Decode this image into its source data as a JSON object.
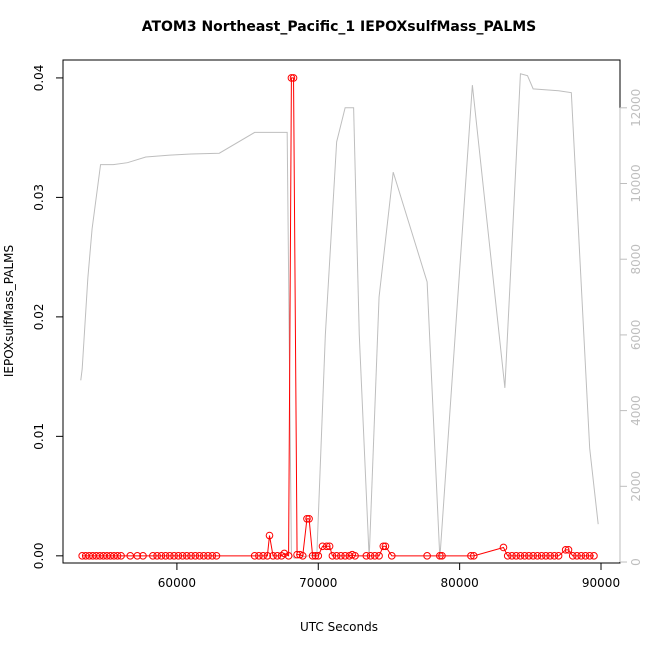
{
  "chart_data": {
    "type": "line",
    "title": "ATOM3 Northeast_Pacific_1 IEPOXsulfMass_PALMS",
    "x_label": "UTC Seconds",
    "y_label": "IEPOXsulfMass_PALMS",
    "xlim": [
      51943,
      91343
    ],
    "ylim": [
      -0.0006,
      0.0415
    ],
    "y2lim": [
      -26,
      13263
    ],
    "xticks": [
      60000,
      70000,
      80000,
      90000
    ],
    "yticks": [
      {
        "value": 0,
        "label": "0.00"
      },
      0.01,
      0.02,
      0.03,
      0.04
    ],
    "y2ticks": [
      0,
      2000,
      4000,
      6000,
      8000,
      10000,
      12000
    ],
    "series": [
      {
        "color": "#bebebe",
        "axis": "y2",
        "markers": false,
        "x": [
          53200,
          53300,
          53700,
          54000,
          54600,
          55500,
          56500,
          57800,
          59500,
          61000,
          63000,
          65500,
          67800,
          68100,
          68300,
          69900,
          70500,
          71300,
          71900,
          72500,
          72900,
          73600,
          74300,
          75300,
          77700,
          78600,
          80900,
          83200,
          84300,
          84800,
          85200,
          87000,
          87900,
          89200,
          89800
        ],
        "values": [
          4800,
          5100,
          7500,
          8800,
          10500,
          10500,
          10550,
          10700,
          10750,
          10780,
          10800,
          11350,
          11350,
          200,
          100,
          200,
          6000,
          11100,
          12000,
          12000,
          6000,
          100,
          7000,
          10300,
          7400,
          100,
          12600,
          4600,
          12900,
          12850,
          12500,
          12450,
          12400,
          3000,
          1000
        ]
      },
      {
        "color": "#ff0000",
        "axis": "y",
        "markers": true,
        "x": [
          53300,
          53550,
          53800,
          54050,
          54300,
          54550,
          54800,
          55050,
          55300,
          55550,
          55800,
          56050,
          56700,
          57200,
          57600,
          58300,
          58600,
          58900,
          59200,
          59500,
          59800,
          60100,
          60400,
          60700,
          61000,
          61300,
          61600,
          61900,
          62200,
          62500,
          62800,
          65500,
          65800,
          66100,
          66400,
          66550,
          66800,
          67100,
          67400,
          67600,
          67900,
          68100,
          68250,
          68500,
          68700,
          68900,
          69200,
          69350,
          69600,
          69800,
          70000,
          70300,
          70600,
          70800,
          71000,
          71300,
          71600,
          71900,
          72200,
          72400,
          72600,
          73400,
          73700,
          74000,
          74300,
          74600,
          74750,
          75200,
          77700,
          78600,
          78750,
          80800,
          81000,
          83100,
          83400,
          83700,
          84000,
          84300,
          84600,
          84900,
          85200,
          85500,
          85800,
          86100,
          86400,
          86700,
          87000,
          87500,
          87700,
          88000,
          88300,
          88600,
          88900,
          89200,
          89500
        ],
        "values": [
          0,
          0,
          0,
          0,
          0,
          0,
          0,
          0,
          0,
          0,
          0,
          0,
          0,
          0,
          0,
          0,
          0,
          0,
          0,
          0,
          0,
          0,
          0,
          0,
          0,
          0,
          0,
          0,
          0,
          0,
          0,
          0,
          0,
          0,
          0,
          0.0017,
          0,
          0,
          0,
          0.0002,
          0,
          0.04,
          0.04,
          0.0001,
          0.0001,
          0,
          0.0031,
          0.0031,
          0,
          0,
          0,
          0.0008,
          0.0008,
          0.0008,
          0,
          0,
          0,
          0,
          0,
          0.0001,
          0,
          0,
          0,
          0,
          0,
          0.0008,
          0.0008,
          0,
          0,
          0,
          0,
          0,
          0,
          0.0007,
          0,
          0,
          0,
          0,
          0,
          0,
          0,
          0,
          0,
          0,
          0,
          0,
          0,
          0.0005,
          0.0005,
          0,
          0,
          0,
          0,
          0,
          0
        ]
      }
    ]
  }
}
